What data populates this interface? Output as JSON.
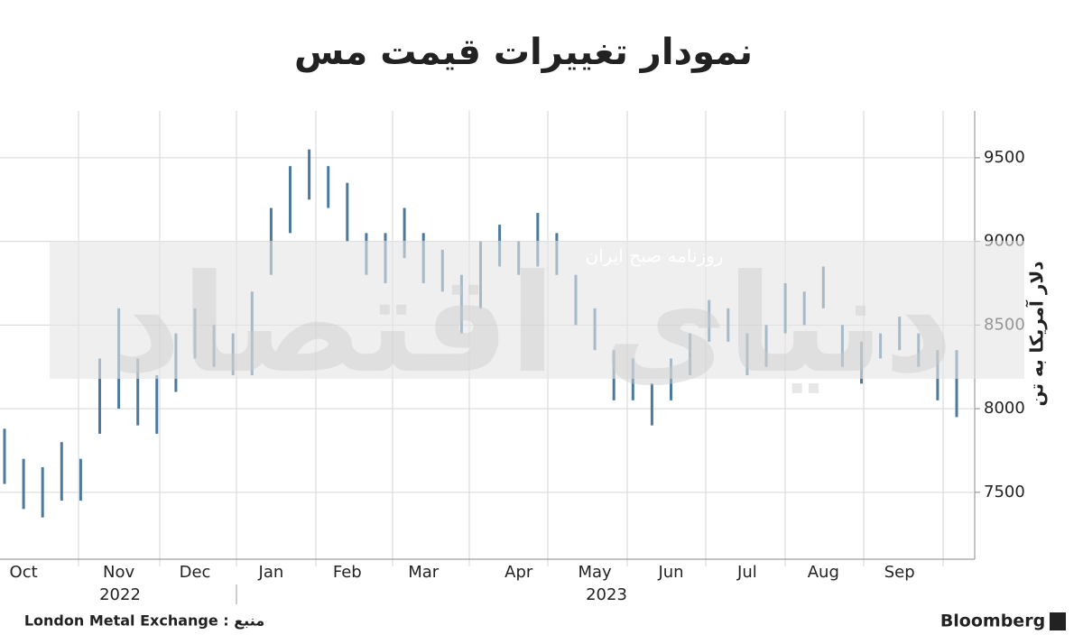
{
  "chart_data": {
    "type": "range-bar",
    "title": "نمودار تغییرات قیمت مس",
    "y_axis_label": "دلار آمریکا به تن",
    "categories": [
      null,
      "Oct",
      null,
      null,
      null,
      null,
      "Nov",
      null,
      null,
      null,
      "Dec",
      null,
      null,
      null,
      "Jan",
      null,
      null,
      null,
      "Feb",
      null,
      null,
      null,
      "Mar",
      null,
      null,
      null,
      null,
      "Apr",
      null,
      null,
      null,
      "May",
      null,
      null,
      null,
      "Jun",
      null,
      null,
      null,
      "Jul",
      null,
      null,
      null,
      "Aug",
      null,
      null,
      null,
      "Sep",
      null,
      null,
      null
    ],
    "years": [
      "2022",
      "2023"
    ],
    "high": [
      7880,
      7700,
      7650,
      7800,
      7700,
      8300,
      8600,
      8300,
      8200,
      8450,
      8600,
      8500,
      8450,
      8700,
      9200,
      9450,
      9550,
      9450,
      9350,
      9050,
      9050,
      9200,
      9050,
      8950,
      8800,
      9000,
      9100,
      9000,
      9170,
      9050,
      8800,
      8600,
      8350,
      8300,
      8150,
      8300,
      8450,
      8650,
      8600,
      8450,
      8500,
      8750,
      8700,
      8850,
      8500,
      8400,
      8450,
      8550,
      8450,
      8350,
      8350
    ],
    "low": [
      7550,
      7400,
      7350,
      7450,
      7450,
      7850,
      8000,
      7900,
      7850,
      8100,
      8300,
      8250,
      8200,
      8200,
      8800,
      9050,
      9250,
      9200,
      9000,
      8800,
      8750,
      8900,
      8750,
      8700,
      8450,
      8600,
      8850,
      8800,
      8850,
      8800,
      8500,
      8350,
      8050,
      8050,
      7900,
      8050,
      8200,
      8400,
      8400,
      8200,
      8250,
      8450,
      8500,
      8600,
      8250,
      8150,
      8300,
      8350,
      8250,
      8050,
      7950
    ],
    "color": "#4c7a9e",
    "ylim": [
      7100,
      9780
    ],
    "yticks": [
      7500,
      8000,
      8500,
      9000,
      9500
    ],
    "grid": true,
    "source": "London Metal Exchange : منبع",
    "brand": "Bloomberg",
    "watermark": [
      "روزنامه صبح ایران",
      "دنیای اقتصاد"
    ]
  }
}
